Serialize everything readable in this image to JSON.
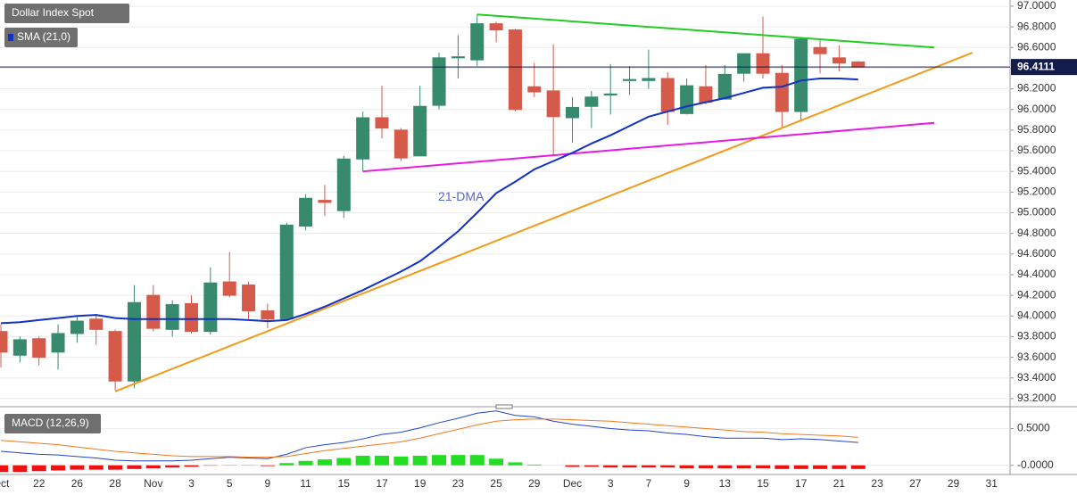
{
  "chart_data": [
    {
      "type": "candlestick",
      "title": "Dollar Index Spot",
      "categories": [
        "Oct",
        null,
        "22",
        null,
        "26",
        null,
        "28",
        null,
        "Nov",
        null,
        "3",
        null,
        "5",
        null,
        "9",
        null,
        "11",
        null,
        "15",
        null,
        "17",
        null,
        "19",
        null,
        "23",
        null,
        "25",
        null,
        "29",
        null,
        "Dec",
        null,
        "3",
        null,
        "7",
        null,
        "9",
        null,
        "13",
        null,
        "15",
        null,
        "17",
        null,
        "21",
        null,
        "23",
        null,
        "27",
        null,
        "29",
        null,
        "31"
      ],
      "open": [
        93.85,
        93.62,
        93.78,
        93.65,
        93.83,
        93.97,
        93.85,
        93.37,
        94.2,
        93.87,
        94.12,
        93.85,
        94.33,
        94.3,
        94.05,
        93.97,
        94.87,
        95.12,
        95.02,
        95.52,
        95.92,
        95.8,
        95.55,
        96.04,
        96.5,
        96.48,
        96.83,
        96.77,
        96.22,
        96.18,
        95.92,
        96.03,
        96.14,
        96.28,
        96.28,
        96.3,
        95.96,
        96.22,
        96.1,
        96.35,
        96.54,
        96.35,
        95.98,
        96.6,
        96.5,
        96.46,
        null,
        null,
        null,
        null,
        null,
        null,
        null
      ],
      "high": [
        93.92,
        93.8,
        93.8,
        93.92,
        94.0,
        94.02,
        93.87,
        94.3,
        94.3,
        94.15,
        94.2,
        94.47,
        94.62,
        94.33,
        94.12,
        94.9,
        95.18,
        95.27,
        95.55,
        95.98,
        96.23,
        95.82,
        96.23,
        96.55,
        96.72,
        96.92,
        96.85,
        96.78,
        96.45,
        96.63,
        96.12,
        96.18,
        96.44,
        96.42,
        96.58,
        96.36,
        96.3,
        96.43,
        96.43,
        96.54,
        96.9,
        96.43,
        96.69,
        96.68,
        96.62,
        96.47,
        null,
        null,
        null,
        null,
        null,
        null,
        null
      ],
      "low": [
        93.5,
        93.55,
        93.52,
        93.48,
        93.74,
        93.72,
        93.28,
        93.3,
        93.85,
        93.8,
        93.83,
        93.82,
        94.18,
        93.97,
        93.88,
        93.97,
        94.83,
        94.97,
        94.95,
        95.4,
        95.72,
        95.5,
        95.55,
        96.0,
        96.3,
        96.42,
        96.65,
        95.98,
        96.12,
        95.55,
        95.68,
        95.82,
        95.95,
        96.14,
        96.2,
        95.85,
        95.95,
        96.05,
        96.1,
        96.27,
        96.3,
        95.83,
        95.88,
        96.35,
        96.37,
        96.41,
        null,
        null,
        null,
        null,
        null,
        null,
        null
      ],
      "close": [
        93.65,
        93.77,
        93.6,
        93.83,
        93.95,
        93.87,
        93.37,
        94.13,
        93.88,
        94.11,
        93.85,
        94.32,
        94.2,
        94.05,
        93.97,
        94.88,
        95.14,
        95.1,
        95.52,
        95.92,
        95.82,
        95.53,
        96.03,
        96.5,
        96.51,
        96.83,
        96.77,
        96.0,
        96.17,
        95.93,
        96.02,
        96.12,
        96.15,
        96.29,
        96.3,
        95.98,
        96.23,
        96.07,
        96.34,
        96.54,
        96.35,
        95.98,
        96.68,
        96.54,
        96.45,
        96.41,
        null,
        null,
        null,
        null,
        null,
        null,
        null
      ],
      "up_color": "#378b6c",
      "down_color": "#d65a4a",
      "series": [
        {
          "name": "SMA (21,0)",
          "color": "#1231c8",
          "values": [
            93.93,
            93.94,
            93.96,
            93.98,
            94.0,
            94.01,
            93.98,
            93.97,
            93.97,
            93.97,
            93.97,
            93.97,
            93.97,
            93.96,
            93.95,
            93.96,
            94.02,
            94.09,
            94.17,
            94.25,
            94.34,
            94.43,
            94.53,
            94.67,
            94.82,
            95.0,
            95.19,
            95.3,
            95.42,
            95.5,
            95.58,
            95.67,
            95.75,
            95.84,
            95.93,
            95.98,
            96.03,
            96.07,
            96.11,
            96.16,
            96.21,
            96.22,
            96.28,
            96.3,
            96.3,
            96.29,
            null,
            null,
            null,
            null,
            null,
            null,
            null
          ]
        }
      ],
      "trendlines": [
        {
          "color": "#22cc22",
          "x": [
            25,
            49
          ],
          "y": [
            96.92,
            96.6
          ]
        },
        {
          "color": "#f29a1a",
          "x": [
            6,
            51
          ],
          "y": [
            93.27,
            96.55
          ]
        },
        {
          "color": "#e619e6",
          "x": [
            19,
            49
          ],
          "y": [
            95.4,
            95.87
          ]
        }
      ],
      "annotations": [
        {
          "text": "21-DMA",
          "x": 23,
          "y": 95.15,
          "color": "#5566cc"
        }
      ],
      "last_price": 96.4111,
      "ylim": [
        93.13,
        97.06
      ],
      "yticks": [
        {
          "value": 93.2,
          "label": "93.2000"
        },
        {
          "value": 93.4,
          "label": "93.4000"
        },
        {
          "value": 93.6,
          "label": "93.6000"
        },
        {
          "value": 93.8,
          "label": "93.8000"
        },
        {
          "value": 94.0,
          "label": "94.0000"
        },
        {
          "value": 94.2,
          "label": "94.2000"
        },
        {
          "value": 94.4,
          "label": "94.4000"
        },
        {
          "value": 94.6,
          "label": "94.6000"
        },
        {
          "value": 94.8,
          "label": "94.8000"
        },
        {
          "value": 95.0,
          "label": "95.0000"
        },
        {
          "value": 95.2,
          "label": "95.2000"
        },
        {
          "value": 95.4,
          "label": "95.4000"
        },
        {
          "value": 95.6,
          "label": "95.6000"
        },
        {
          "value": 95.8,
          "label": "95.8000"
        },
        {
          "value": 96.0,
          "label": "96.0000"
        },
        {
          "value": 96.2,
          "label": "96.2000"
        },
        {
          "value": 96.4,
          "label": "96.4000"
        },
        {
          "value": 96.6,
          "label": "96.6000"
        },
        {
          "value": 96.8,
          "label": "96.8000"
        },
        {
          "value": 97.0,
          "label": "97.0000"
        }
      ],
      "grid": true
    },
    {
      "type": "macd",
      "title": "MACD (12,26,9)",
      "histogram": {
        "up_color": "#22dd22",
        "down_color": "#ee1111",
        "values": [
          -0.09,
          -0.09,
          -0.08,
          -0.07,
          -0.06,
          -0.06,
          -0.06,
          -0.05,
          -0.04,
          -0.03,
          -0.02,
          -0.005,
          0.005,
          0.005,
          -0.01,
          0.03,
          0.06,
          0.08,
          0.1,
          0.13,
          0.13,
          0.12,
          0.13,
          0.14,
          0.14,
          0.14,
          0.09,
          0.04,
          0.01,
          0,
          -0.02,
          -0.02,
          -0.03,
          -0.03,
          -0.03,
          -0.03,
          -0.04,
          -0.04,
          -0.04,
          -0.04,
          -0.04,
          -0.05,
          -0.05,
          -0.05,
          -0.05,
          -0.05,
          null,
          null,
          null,
          null,
          null,
          null,
          null
        ]
      },
      "series": [
        {
          "color": "#2244cc",
          "values": [
            0.19,
            0.17,
            0.15,
            0.14,
            0.12,
            0.1,
            0.07,
            0.06,
            0.06,
            0.06,
            0.07,
            0.09,
            0.11,
            0.1,
            0.09,
            0.15,
            0.24,
            0.28,
            0.31,
            0.36,
            0.42,
            0.45,
            0.51,
            0.58,
            0.64,
            0.71,
            0.74,
            0.68,
            0.66,
            0.6,
            0.56,
            0.53,
            0.5,
            0.48,
            0.47,
            0.44,
            0.42,
            0.39,
            0.37,
            0.37,
            0.37,
            0.35,
            0.36,
            0.35,
            0.33,
            0.31,
            null,
            null,
            null,
            null,
            null,
            null,
            null
          ]
        },
        {
          "color": "#f07820",
          "values": [
            0.34,
            0.32,
            0.3,
            0.28,
            0.25,
            0.22,
            0.19,
            0.17,
            0.15,
            0.13,
            0.12,
            0.12,
            0.12,
            0.11,
            0.11,
            0.12,
            0.16,
            0.2,
            0.23,
            0.26,
            0.29,
            0.32,
            0.37,
            0.43,
            0.49,
            0.55,
            0.6,
            0.62,
            0.63,
            0.63,
            0.62,
            0.61,
            0.6,
            0.58,
            0.56,
            0.54,
            0.52,
            0.5,
            0.48,
            0.46,
            0.45,
            0.43,
            0.42,
            0.41,
            0.4,
            0.38,
            null,
            null,
            null,
            null,
            null,
            null,
            null
          ]
        }
      ],
      "ylim": [
        -0.125,
        0.725
      ],
      "yticks": [
        {
          "value": 0.5,
          "label": "0.5000"
        },
        {
          "value": 0,
          "label": "-0.0000"
        }
      ],
      "grid": true
    }
  ]
}
